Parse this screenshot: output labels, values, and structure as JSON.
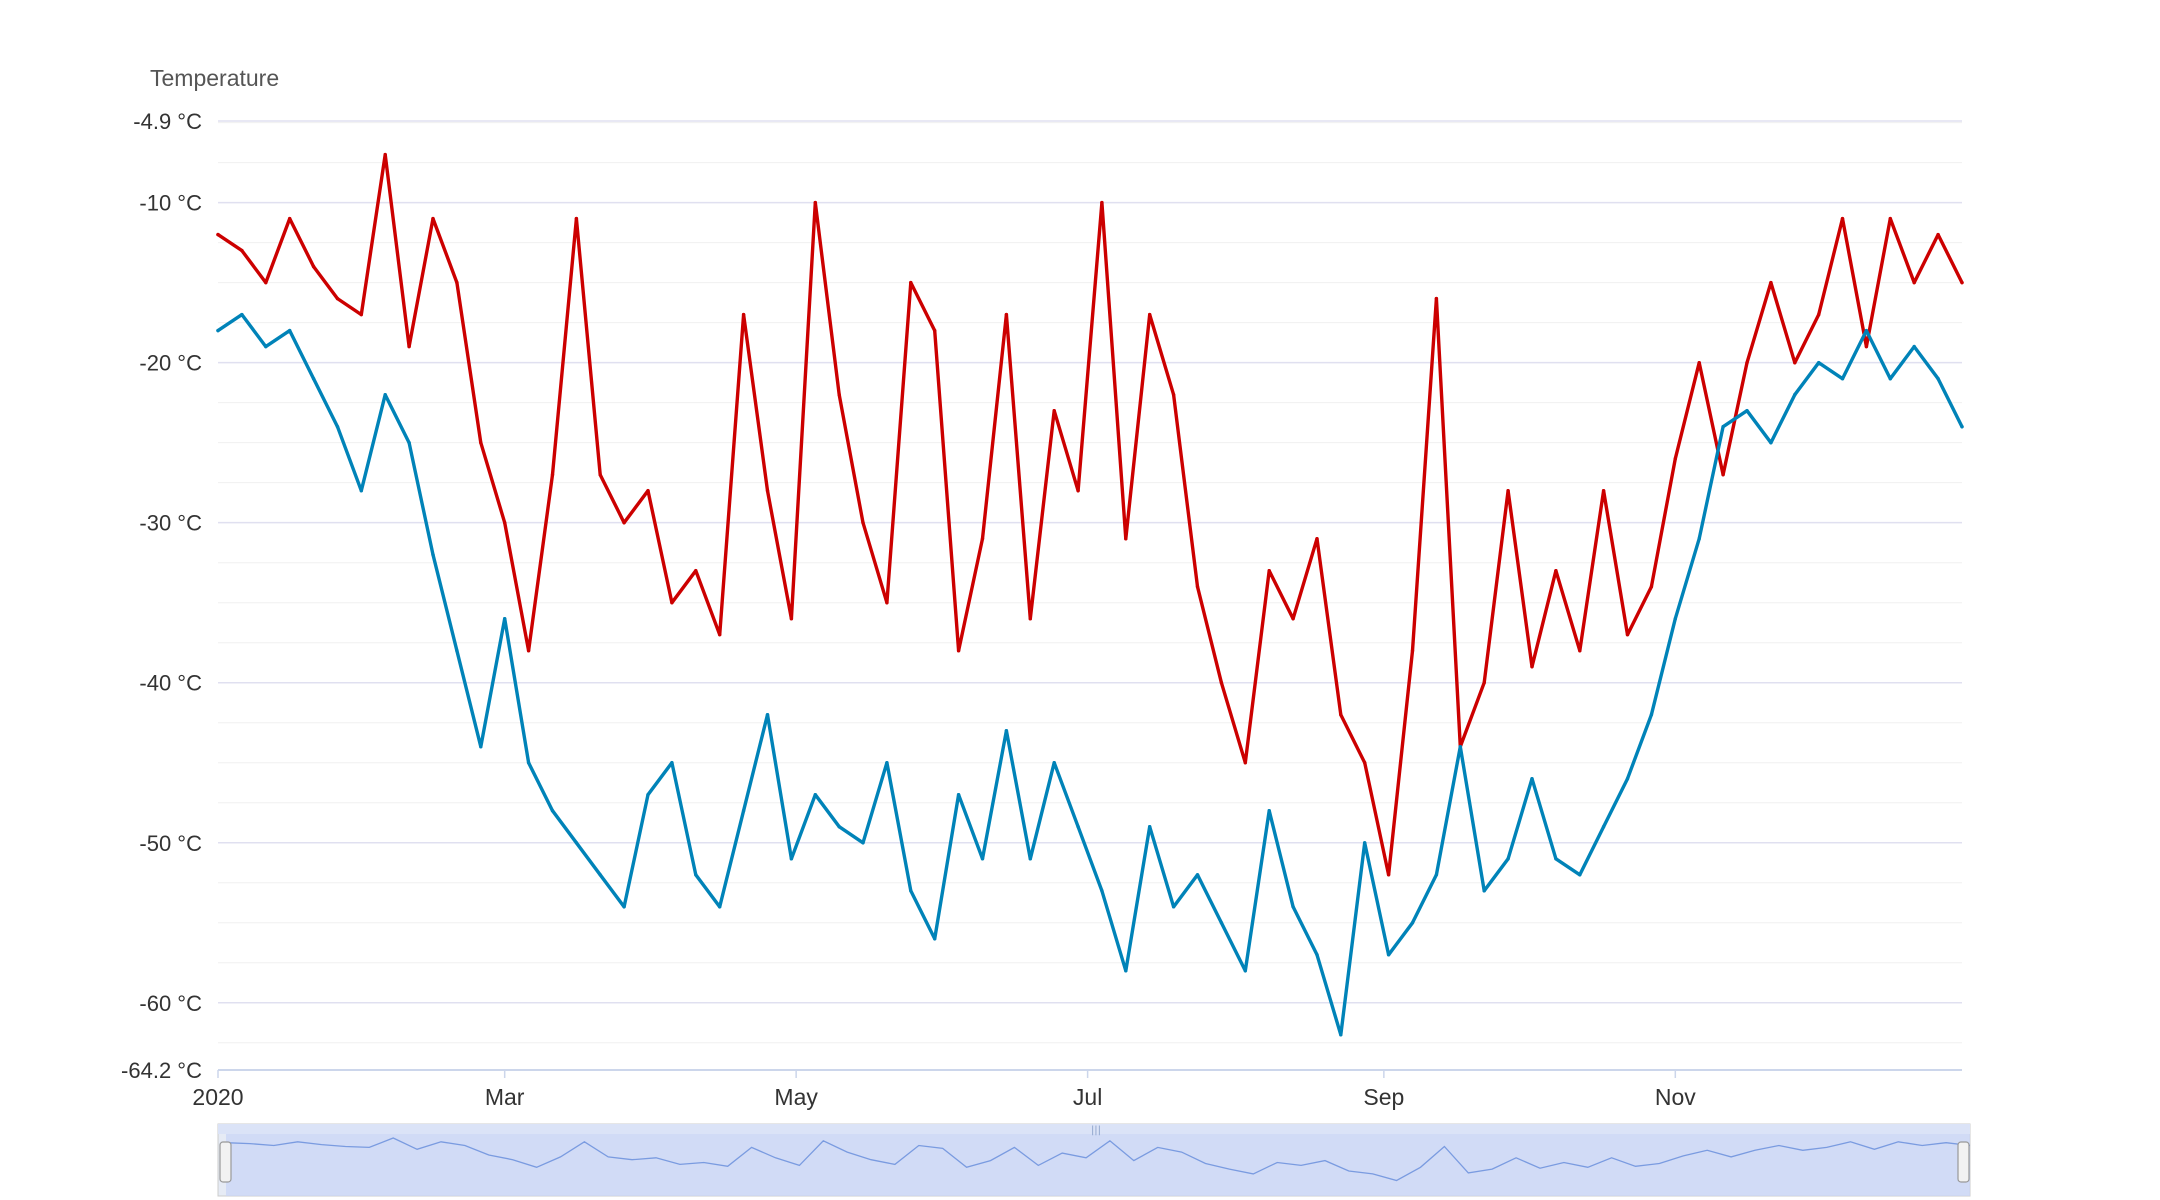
{
  "chart_data": {
    "type": "line",
    "ylabel": "Temperature",
    "unit": "°C",
    "ylim": [
      -64.2,
      -4.9
    ],
    "y_ticks": [
      {
        "value": -4.9,
        "label": "-4.9 °C"
      },
      {
        "value": -10,
        "label": "-10 °C"
      },
      {
        "value": -20,
        "label": "-20 °C"
      },
      {
        "value": -30,
        "label": "-30 °C"
      },
      {
        "value": -40,
        "label": "-40 °C"
      },
      {
        "value": -50,
        "label": "-50 °C"
      },
      {
        "value": -60,
        "label": "-60 °C"
      },
      {
        "value": -64.2,
        "label": "-64.2 °C"
      }
    ],
    "xlim": [
      "2020-01-01",
      "2020-12-31"
    ],
    "x_ticks": [
      {
        "date": "2020-01-01",
        "label": "2020"
      },
      {
        "date": "2020-03-01",
        "label": "Mar"
      },
      {
        "date": "2020-05-01",
        "label": "May"
      },
      {
        "date": "2020-07-01",
        "label": "Jul"
      },
      {
        "date": "2020-09-01",
        "label": "Sep"
      },
      {
        "date": "2020-11-01",
        "label": "Nov"
      }
    ],
    "grid": true,
    "legend": "none",
    "series": [
      {
        "color": "#cc0000",
        "x": [
          "2020-01-01",
          "2020-01-06",
          "2020-01-11",
          "2020-01-16",
          "2020-01-21",
          "2020-01-26",
          "2020-01-31",
          "2020-02-05",
          "2020-02-10",
          "2020-02-15",
          "2020-02-20",
          "2020-02-25",
          "2020-03-01",
          "2020-03-06",
          "2020-03-11",
          "2020-03-16",
          "2020-03-21",
          "2020-03-26",
          "2020-03-31",
          "2020-04-05",
          "2020-04-10",
          "2020-04-15",
          "2020-04-20",
          "2020-04-25",
          "2020-04-30",
          "2020-05-05",
          "2020-05-10",
          "2020-05-15",
          "2020-05-20",
          "2020-05-25",
          "2020-05-30",
          "2020-06-04",
          "2020-06-09",
          "2020-06-14",
          "2020-06-19",
          "2020-06-24",
          "2020-06-29",
          "2020-07-04",
          "2020-07-09",
          "2020-07-14",
          "2020-07-19",
          "2020-07-24",
          "2020-07-29",
          "2020-08-03",
          "2020-08-08",
          "2020-08-13",
          "2020-08-18",
          "2020-08-23",
          "2020-08-28",
          "2020-09-02",
          "2020-09-07",
          "2020-09-12",
          "2020-09-17",
          "2020-09-22",
          "2020-09-27",
          "2020-10-02",
          "2020-10-07",
          "2020-10-12",
          "2020-10-17",
          "2020-10-22",
          "2020-10-27",
          "2020-11-01",
          "2020-11-06",
          "2020-11-11",
          "2020-11-16",
          "2020-11-21",
          "2020-11-26",
          "2020-12-01",
          "2020-12-06",
          "2020-12-11",
          "2020-12-16",
          "2020-12-21",
          "2020-12-26",
          "2020-12-31"
        ],
        "values": [
          -12,
          -13,
          -15,
          -11,
          -14,
          -16,
          -17,
          -7,
          -19,
          -11,
          -15,
          -25,
          -30,
          -38,
          -27,
          -11,
          -27,
          -30,
          -28,
          -35,
          -33,
          -37,
          -17,
          -28,
          -36,
          -10,
          -22,
          -30,
          -35,
          -15,
          -18,
          -38,
          -31,
          -17,
          -36,
          -23,
          -28,
          -10,
          -31,
          -17,
          -22,
          -34,
          -40,
          -45,
          -33,
          -36,
          -31,
          -42,
          -45,
          -52,
          -38,
          -16,
          -44,
          -40,
          -28,
          -39,
          -33,
          -38,
          -28,
          -37,
          -34,
          -26,
          -20,
          -27,
          -20,
          -15,
          -20,
          -17,
          -11,
          -19,
          -11,
          -15,
          -12,
          -15
        ]
      },
      {
        "color": "#0083b8",
        "x": [
          "2020-01-01",
          "2020-01-06",
          "2020-01-11",
          "2020-01-16",
          "2020-01-21",
          "2020-01-26",
          "2020-01-31",
          "2020-02-05",
          "2020-02-10",
          "2020-02-15",
          "2020-02-20",
          "2020-02-25",
          "2020-03-01",
          "2020-03-06",
          "2020-03-11",
          "2020-03-16",
          "2020-03-21",
          "2020-03-26",
          "2020-03-31",
          "2020-04-05",
          "2020-04-10",
          "2020-04-15",
          "2020-04-20",
          "2020-04-25",
          "2020-04-30",
          "2020-05-05",
          "2020-05-10",
          "2020-05-15",
          "2020-05-20",
          "2020-05-25",
          "2020-05-30",
          "2020-06-04",
          "2020-06-09",
          "2020-06-14",
          "2020-06-19",
          "2020-06-24",
          "2020-06-29",
          "2020-07-04",
          "2020-07-09",
          "2020-07-14",
          "2020-07-19",
          "2020-07-24",
          "2020-07-29",
          "2020-08-03",
          "2020-08-08",
          "2020-08-13",
          "2020-08-18",
          "2020-08-23",
          "2020-08-28",
          "2020-09-02",
          "2020-09-07",
          "2020-09-12",
          "2020-09-17",
          "2020-09-22",
          "2020-09-27",
          "2020-10-02",
          "2020-10-07",
          "2020-10-12",
          "2020-10-17",
          "2020-10-22",
          "2020-10-27",
          "2020-11-01",
          "2020-11-06",
          "2020-11-11",
          "2020-11-16",
          "2020-11-21",
          "2020-11-26",
          "2020-12-01",
          "2020-12-06",
          "2020-12-11",
          "2020-12-16",
          "2020-12-21",
          "2020-12-26",
          "2020-12-31"
        ],
        "values": [
          -18,
          -17,
          -19,
          -18,
          -21,
          -24,
          -28,
          -22,
          -25,
          -32,
          -38,
          -44,
          -36,
          -45,
          -48,
          -50,
          -52,
          -54,
          -47,
          -45,
          -52,
          -54,
          -48,
          -42,
          -51,
          -47,
          -49,
          -50,
          -45,
          -53,
          -56,
          -47,
          -51,
          -43,
          -51,
          -45,
          -49,
          -53,
          -58,
          -49,
          -54,
          -52,
          -55,
          -58,
          -48,
          -54,
          -57,
          -62,
          -50,
          -57,
          -55,
          -52,
          -44,
          -53,
          -51,
          -46,
          -51,
          -52,
          -49,
          -46,
          -42,
          -36,
          -31,
          -24,
          -23,
          -25,
          -22,
          -20,
          -21,
          -18,
          -21,
          -19,
          -21,
          -24
        ]
      }
    ],
    "navigator": true
  }
}
